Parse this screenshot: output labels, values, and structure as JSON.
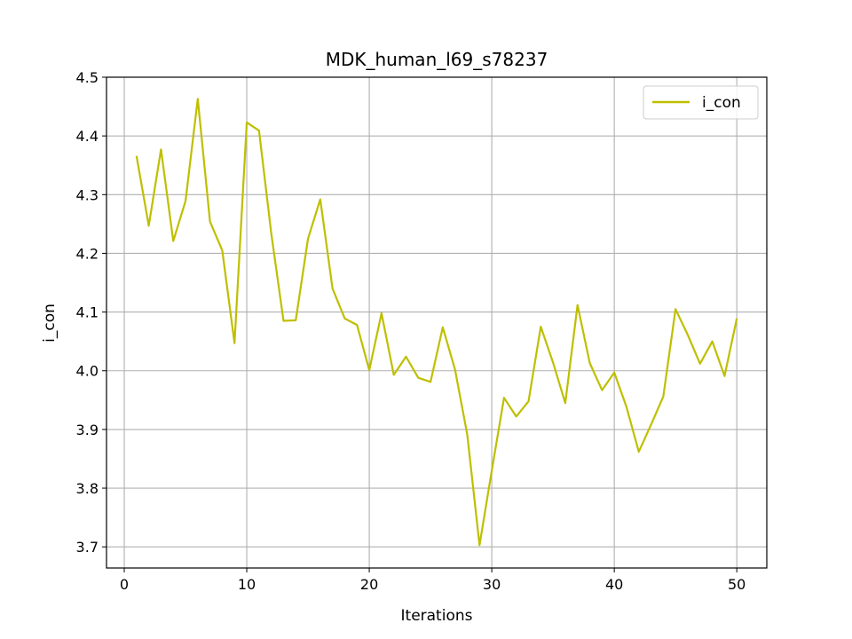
{
  "chart_data": {
    "type": "line",
    "title": "MDK_human_l69_s78237",
    "xlabel": "Iterations",
    "ylabel": "i_con",
    "xlim": [
      -1.45,
      52.45
    ],
    "ylim": [
      3.664,
      4.5
    ],
    "xticks": [
      0,
      10,
      20,
      30,
      40,
      50
    ],
    "yticks": [
      3.7,
      3.8,
      3.9,
      4.0,
      4.1,
      4.2,
      4.3,
      4.4,
      4.5
    ],
    "ytick_labels": [
      "3.7",
      "3.8",
      "3.9",
      "4.0",
      "4.1",
      "4.2",
      "4.3",
      "4.4",
      "4.5"
    ],
    "grid": true,
    "legend": "top-right",
    "series": [
      {
        "name": "i_con",
        "color": "#bfbf00",
        "x": [
          1,
          2,
          3,
          4,
          5,
          6,
          7,
          8,
          9,
          10,
          11,
          12,
          13,
          14,
          15,
          16,
          17,
          18,
          19,
          20,
          21,
          22,
          23,
          24,
          25,
          26,
          27,
          28,
          29,
          30,
          31,
          32,
          33,
          34,
          35,
          36,
          37,
          38,
          39,
          40,
          41,
          42,
          43,
          44,
          45,
          46,
          47,
          48,
          49,
          50
        ],
        "y": [
          4.366,
          4.247,
          4.377,
          4.221,
          4.289,
          4.463,
          4.254,
          4.205,
          4.047,
          4.423,
          4.409,
          4.234,
          4.085,
          4.086,
          4.225,
          4.292,
          4.14,
          4.089,
          4.078,
          4.001,
          4.098,
          3.993,
          4.024,
          3.988,
          3.981,
          4.074,
          4.002,
          3.891,
          3.703,
          3.83,
          3.954,
          3.922,
          3.948,
          4.075,
          4.014,
          3.945,
          4.112,
          4.013,
          3.967,
          3.997,
          3.938,
          3.862,
          3.908,
          3.956,
          4.105,
          4.061,
          4.012,
          4.05,
          3.991,
          4.089
        ]
      }
    ]
  }
}
